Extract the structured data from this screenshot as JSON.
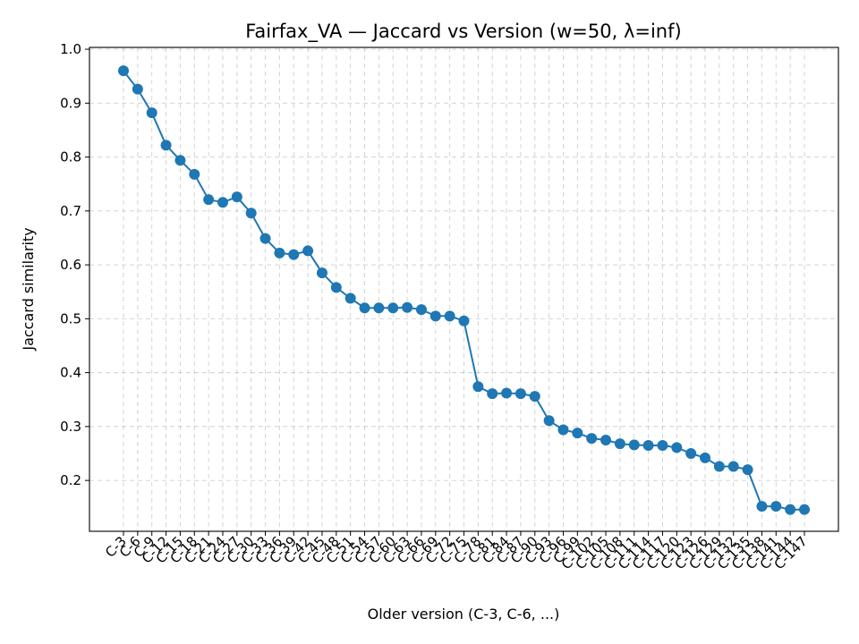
{
  "chart_data": {
    "type": "line",
    "title": "Fairfax_VA — Jaccard vs Version (w=50, λ=inf)",
    "xlabel": "Older version (C-3, C-6, ...)",
    "ylabel": "Jaccard similarity",
    "ylim": [
      0.1,
      1.0
    ],
    "yticks": [
      "0.2",
      "0.3",
      "0.4",
      "0.5",
      "0.6",
      "0.7",
      "0.8",
      "0.9",
      "1.0"
    ],
    "grid": true,
    "categories": [
      "C-3",
      "C-6",
      "C-9",
      "C-12",
      "C-15",
      "C-18",
      "C-21",
      "C-24",
      "C-27",
      "C-30",
      "C-33",
      "C-36",
      "C-39",
      "C-42",
      "C-45",
      "C-48",
      "C-51",
      "C-54",
      "C-57",
      "C-60",
      "C-63",
      "C-66",
      "C-69",
      "C-72",
      "C-75",
      "C-78",
      "C-81",
      "C-84",
      "C-87",
      "C-90",
      "C-93",
      "C-96",
      "C-99",
      "C-102",
      "C-105",
      "C-108",
      "C-111",
      "C-114",
      "C-117",
      "C-120",
      "C-123",
      "C-126",
      "C-129",
      "C-132",
      "C-135",
      "C-138",
      "C-141",
      "C-144",
      "C-147"
    ],
    "series": [
      {
        "color": "#1f77b4",
        "values": [
          0.96,
          0.926,
          0.882,
          0.822,
          0.794,
          0.768,
          0.721,
          0.716,
          0.726,
          0.696,
          0.649,
          0.622,
          0.619,
          0.626,
          0.585,
          0.558,
          0.538,
          0.52,
          0.52,
          0.52,
          0.521,
          0.517,
          0.505,
          0.505,
          0.496,
          0.374,
          0.361,
          0.362,
          0.361,
          0.356,
          0.311,
          0.294,
          0.288,
          0.278,
          0.275,
          0.268,
          0.266,
          0.265,
          0.265,
          0.261,
          0.25,
          0.242,
          0.226,
          0.226,
          0.22,
          0.152,
          0.152,
          0.146,
          0.146
        ]
      }
    ]
  }
}
